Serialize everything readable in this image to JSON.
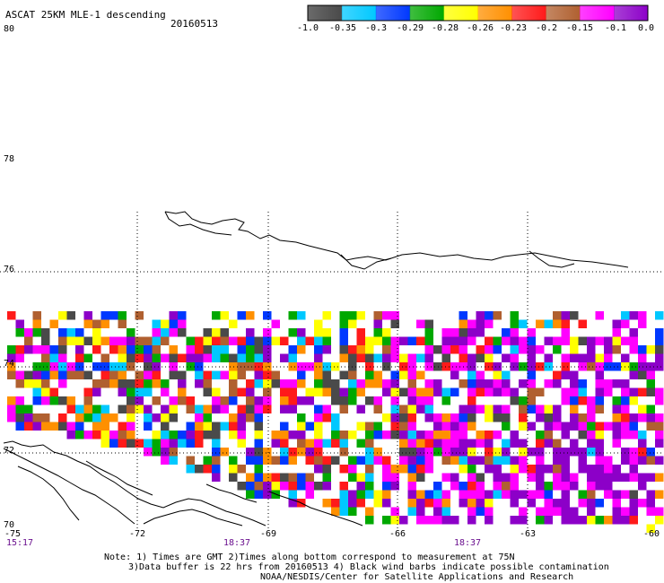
{
  "header": {
    "title": "ASCAT 25KM MLE-1 descending",
    "date": "20160513"
  },
  "colorbar": {
    "labels": [
      "-1.0",
      "-0.35",
      "-0.3",
      "-0.29",
      "-0.28",
      "-0.26",
      "-0.23",
      "-0.2",
      "-0.15",
      "-0.1",
      "0.0"
    ],
    "colors": [
      "#4a4a4a",
      "#00c8ff",
      "#0038ff",
      "#00a800",
      "#ffff00",
      "#ff9000",
      "#ff1a1a",
      "#b06030",
      "#ff00ff",
      "#8c00c8"
    ]
  },
  "axes": {
    "lat_labels": [
      "80",
      "78",
      "76",
      "74",
      "72",
      "70"
    ],
    "lon_labels": [
      "-75",
      "-72",
      "-69",
      "-66",
      "-63",
      "-60"
    ],
    "time_labels": [
      "15:17",
      "18:37",
      "18:37"
    ]
  },
  "notes": {
    "line1": "Note: 1) Times are GMT 2)Times along bottom correspond to measurement at 75N",
    "line2": "3)Data buffer is 22 hrs from 20160513 4) Black wind barbs indicate possible contamination",
    "line3": "NOAA/NESDIS/Center for Satellite Applications and Research"
  }
}
